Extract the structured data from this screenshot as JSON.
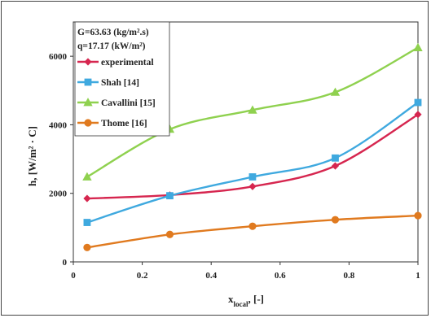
{
  "chart_data": {
    "type": "line",
    "title": "",
    "xlabel": "x_local, [-]",
    "xlabel_main": "x",
    "xlabel_sub": "local",
    "xlabel_rest": ", [-]",
    "ylabel": "h, [W/m² · C]",
    "xlim": [
      0,
      1
    ],
    "ylim": [
      0,
      7000
    ],
    "xticks": [
      {
        "value": 0,
        "label": "0"
      },
      {
        "value": 0.2,
        "label": "0.2"
      },
      {
        "value": 0.4,
        "label": "0.4"
      },
      {
        "value": 0.6,
        "label": "0.6"
      },
      {
        "value": 0.8,
        "label": "0.8"
      },
      {
        "value": 1,
        "label": "1"
      }
    ],
    "yticks": [
      {
        "value": 0,
        "label": "0"
      },
      {
        "value": 2000,
        "label": "2000"
      },
      {
        "value": 4000,
        "label": "4000"
      },
      {
        "value": 6000,
        "label": "6000"
      }
    ],
    "grid": false,
    "legend_position": "top-left",
    "annotations": [
      "G=63.63 (kg/m².s)",
      "q=17.17 (kW/m²)"
    ],
    "series": [
      {
        "name": "experimental",
        "color": "#d6264f",
        "marker": "diamond",
        "x": [
          0.04,
          0.28,
          0.52,
          0.76,
          1.0
        ],
        "y": [
          1850,
          1950,
          2200,
          2800,
          4300
        ]
      },
      {
        "name": "Shah [14]",
        "color": "#3fa9df",
        "marker": "square",
        "x": [
          0.04,
          0.28,
          0.52,
          0.76,
          1.0
        ],
        "y": [
          1150,
          1930,
          2480,
          3030,
          4650
        ]
      },
      {
        "name": "Cavallini [15]",
        "color": "#8fd14f",
        "marker": "triangle",
        "x": [
          0.04,
          0.28,
          0.52,
          0.76,
          1.0
        ],
        "y": [
          2480,
          3870,
          4430,
          4950,
          6250
        ]
      },
      {
        "name": "Thome [16]",
        "color": "#e07a1f",
        "marker": "circle",
        "x": [
          0.04,
          0.28,
          0.52,
          0.76,
          1.0
        ],
        "y": [
          420,
          800,
          1040,
          1230,
          1350
        ]
      }
    ]
  }
}
